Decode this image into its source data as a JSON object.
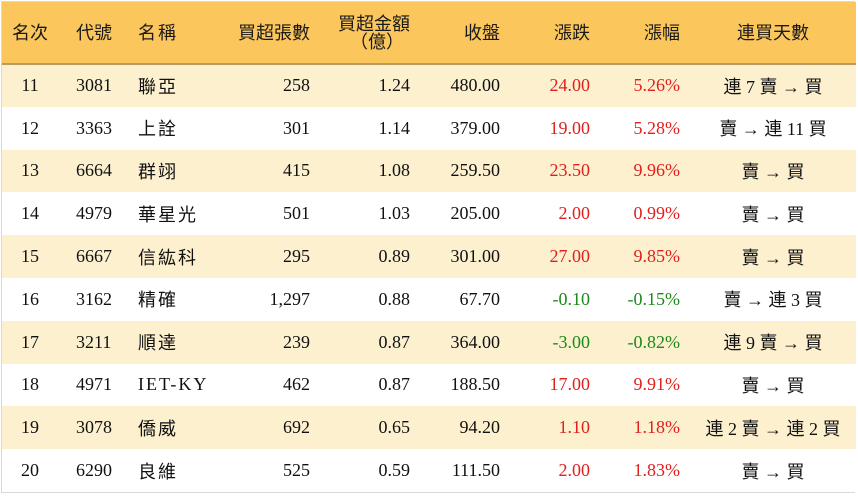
{
  "table": {
    "headers": {
      "rank": "名次",
      "code": "代號",
      "name": "名稱",
      "shares": "買超張數",
      "amount_line1": "買超金額",
      "amount_line2": "（億）",
      "close": "收盤",
      "change": "漲跌",
      "change_pct": "漲幅",
      "streak": "連買天數"
    },
    "colors": {
      "up": "#e0201e",
      "down": "#1a8a1a",
      "header_bg": "#fbc65b",
      "stripe_bg": "#fdf0cf"
    },
    "rows": [
      {
        "rank": "11",
        "code": "3081",
        "name": "聯亞",
        "shares": "258",
        "amount": "1.24",
        "close": "480.00",
        "change": "24.00",
        "change_pct": "5.26%",
        "direction": "up",
        "streak": "連 7 賣 → 買"
      },
      {
        "rank": "12",
        "code": "3363",
        "name": "上詮",
        "shares": "301",
        "amount": "1.14",
        "close": "379.00",
        "change": "19.00",
        "change_pct": "5.28%",
        "direction": "up",
        "streak": "賣 → 連 11 買"
      },
      {
        "rank": "13",
        "code": "6664",
        "name": "群翊",
        "shares": "415",
        "amount": "1.08",
        "close": "259.50",
        "change": "23.50",
        "change_pct": "9.96%",
        "direction": "up",
        "streak": "賣 → 買"
      },
      {
        "rank": "14",
        "code": "4979",
        "name": "華星光",
        "shares": "501",
        "amount": "1.03",
        "close": "205.00",
        "change": "2.00",
        "change_pct": "0.99%",
        "direction": "up",
        "streak": "賣 → 買"
      },
      {
        "rank": "15",
        "code": "6667",
        "name": "信紘科",
        "shares": "295",
        "amount": "0.89",
        "close": "301.00",
        "change": "27.00",
        "change_pct": "9.85%",
        "direction": "up",
        "streak": "賣 → 買"
      },
      {
        "rank": "16",
        "code": "3162",
        "name": "精確",
        "shares": "1,297",
        "amount": "0.88",
        "close": "67.70",
        "change": "-0.10",
        "change_pct": "-0.15%",
        "direction": "down",
        "streak": "賣 → 連 3 買"
      },
      {
        "rank": "17",
        "code": "3211",
        "name": "順達",
        "shares": "239",
        "amount": "0.87",
        "close": "364.00",
        "change": "-3.00",
        "change_pct": "-0.82%",
        "direction": "down",
        "streak": "連 9 賣 → 買"
      },
      {
        "rank": "18",
        "code": "4971",
        "name": "IET-KY",
        "shares": "462",
        "amount": "0.87",
        "close": "188.50",
        "change": "17.00",
        "change_pct": "9.91%",
        "direction": "up",
        "streak": "賣 → 買"
      },
      {
        "rank": "19",
        "code": "3078",
        "name": "僑威",
        "shares": "692",
        "amount": "0.65",
        "close": "94.20",
        "change": "1.10",
        "change_pct": "1.18%",
        "direction": "up",
        "streak": "連 2 賣 → 連 2 買"
      },
      {
        "rank": "20",
        "code": "6290",
        "name": "良維",
        "shares": "525",
        "amount": "0.59",
        "close": "111.50",
        "change": "2.00",
        "change_pct": "1.83%",
        "direction": "up",
        "streak": "賣 → 買"
      }
    ]
  }
}
